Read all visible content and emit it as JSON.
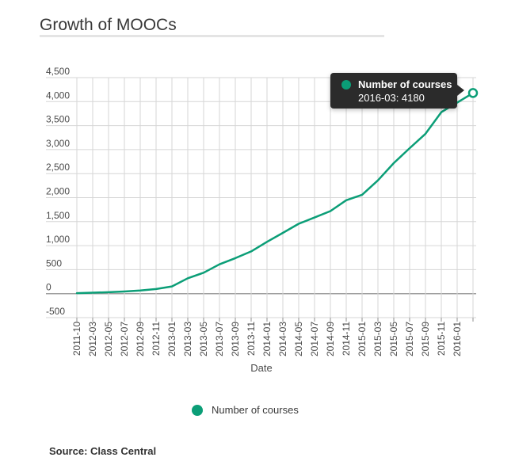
{
  "title": "Growth of MOOCs",
  "colors": {
    "accent": "#0b9e77",
    "grid": "#d6d6d6",
    "zero_line": "#9e9e9e",
    "tick": "#8f8f8f",
    "axis_text": "#4a4a4a",
    "tooltip_bg": "#2b2b2b"
  },
  "tooltip": {
    "series": "Number of courses",
    "value_line": "2016-03: 4180"
  },
  "legend": {
    "label": "Number of courses"
  },
  "source": {
    "label": "Source: Class Central"
  },
  "chart_data": {
    "type": "line",
    "title": "Growth of MOOCs",
    "xlabel": "Date",
    "ylabel": "",
    "ylim": [
      -500,
      4500
    ],
    "grid": true,
    "legend_position": "bottom",
    "x": [
      "2011-10",
      "2012-03",
      "2012-05",
      "2012-07",
      "2012-09",
      "2012-11",
      "2013-01",
      "2013-03",
      "2013-05",
      "2013-07",
      "2013-09",
      "2013-11",
      "2014-01",
      "2014-03",
      "2014-05",
      "2014-07",
      "2014-09",
      "2014-11",
      "2015-01",
      "2015-03",
      "2015-05",
      "2015-07",
      "2015-09",
      "2015-11",
      "2016-01",
      "2016-03"
    ],
    "x_tick_labels": [
      "2011-10",
      "2012-03",
      "2012-05",
      "2012-07",
      "2012-09",
      "2012-11",
      "2013-01",
      "2013-03",
      "2013-05",
      "2013-07",
      "2013-09",
      "2013-11",
      "2014-01",
      "2014-03",
      "2014-05",
      "2014-07",
      "2014-09",
      "2014-11",
      "2015-01",
      "2015-03",
      "2015-05",
      "2015-07",
      "2015-09",
      "2015-11",
      "2016-01"
    ],
    "y_tick_values": [
      4500,
      4000,
      3500,
      3000,
      2500,
      2000,
      1500,
      1000,
      500,
      0,
      -500
    ],
    "y_tick_labels": [
      "4,500",
      "4,000",
      "3,500",
      "3,000",
      "2,500",
      "2,000",
      "1,500",
      "1,000",
      "500",
      "0",
      "-500"
    ],
    "series": [
      {
        "name": "Number of courses",
        "values": [
          10,
          20,
          30,
          45,
          65,
          95,
          150,
          320,
          435,
          610,
          740,
          880,
          1080,
          1265,
          1455,
          1585,
          1720,
          1945,
          2060,
          2360,
          2720,
          3030,
          3330,
          3780,
          3980,
          4180
        ]
      }
    ],
    "hovered_point": {
      "x": "2016-03",
      "value": 4180
    }
  }
}
